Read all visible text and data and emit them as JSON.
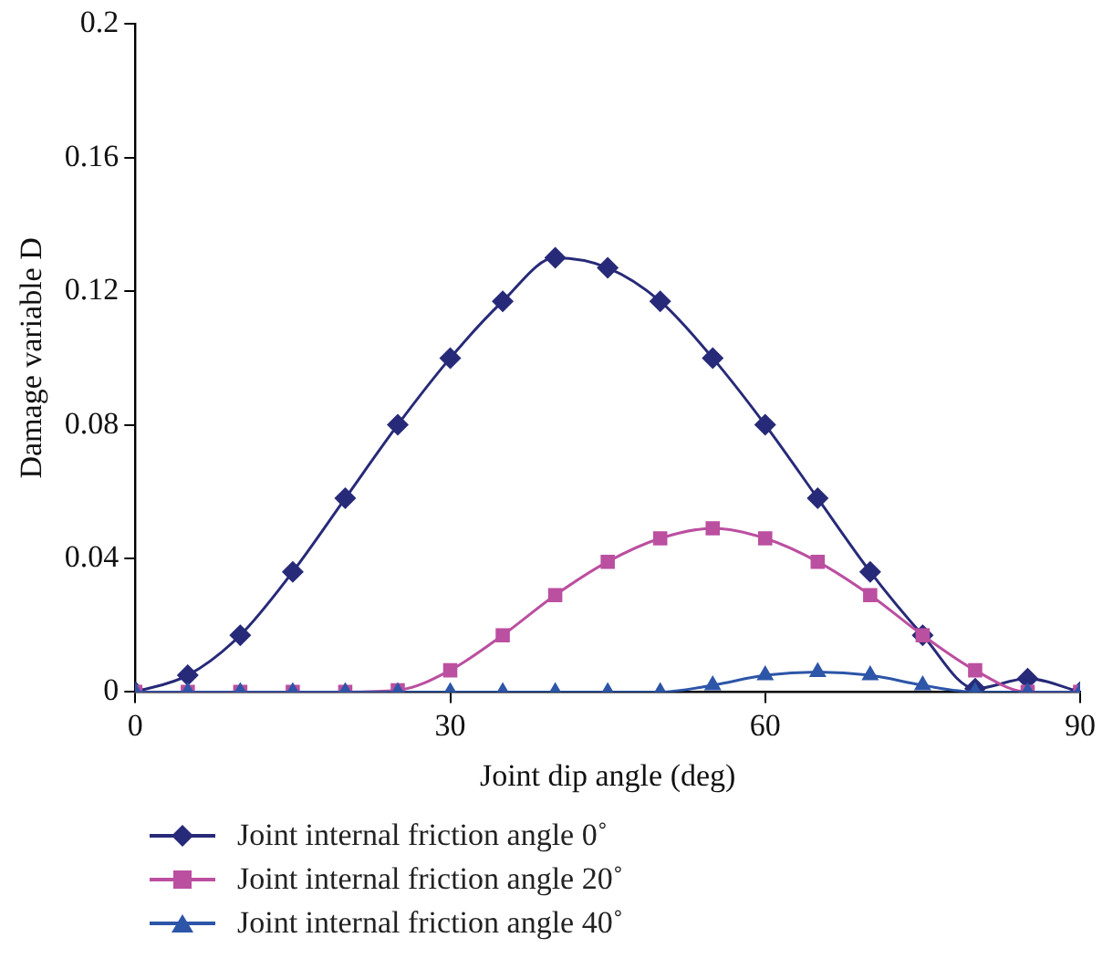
{
  "chart_data": {
    "type": "line",
    "xlabel": "Joint dip angle (deg)",
    "ylabel": "Damage variable D",
    "x": [
      0,
      5,
      10,
      15,
      20,
      25,
      30,
      35,
      40,
      45,
      50,
      55,
      60,
      65,
      70,
      75,
      80,
      85,
      90
    ],
    "series": [
      {
        "name": "Joint internal friction angle 0˚",
        "color": "#272a78",
        "marker": "diamond",
        "values": [
          0,
          0.005,
          0.017,
          0.036,
          0.058,
          0.08,
          0.1,
          0.117,
          0.13,
          0.127,
          0.117,
          0.1,
          0.08,
          0.058,
          0.036,
          0.017,
          0.001,
          0.004,
          0
        ]
      },
      {
        "name": "Joint internal friction angle 20˚",
        "color": "#bb4fa0",
        "marker": "square",
        "values": [
          0,
          0,
          0,
          0,
          0,
          0.0005,
          0.0065,
          0.017,
          0.029,
          0.039,
          0.046,
          0.049,
          0.046,
          0.039,
          0.029,
          0.017,
          0.0065,
          0,
          0
        ]
      },
      {
        "name": "Joint internal friction angle 40˚",
        "color": "#2d55a8",
        "marker": "triangle",
        "values": [
          0,
          0,
          0,
          0,
          0,
          0,
          0,
          0,
          0,
          0,
          0,
          0.002,
          0.005,
          0.006,
          0.005,
          0.002,
          0,
          0,
          0
        ]
      }
    ],
    "xlim": [
      0,
      90
    ],
    "xticks": [
      0,
      30,
      60,
      90
    ],
    "ylim": [
      0,
      0.2
    ],
    "yticks": [
      0,
      0.04,
      0.08,
      0.12,
      0.16,
      0.2
    ],
    "grid": false,
    "legend": "bottom",
    "line_style": "solid"
  }
}
